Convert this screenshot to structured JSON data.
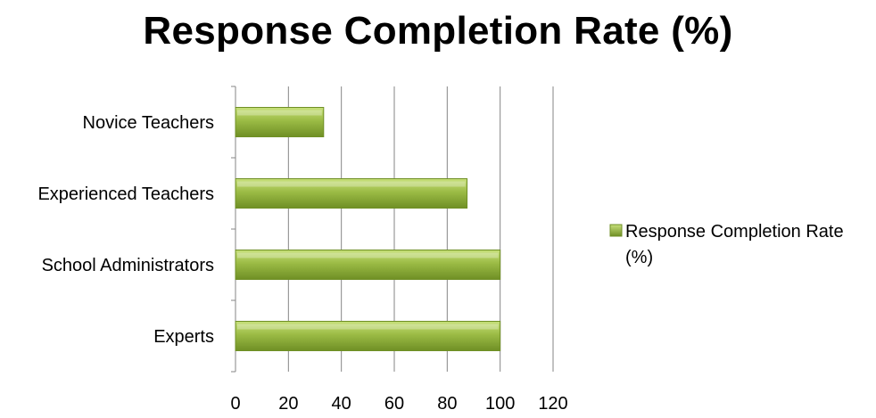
{
  "chart_data": {
    "type": "bar",
    "orientation": "horizontal",
    "title": "Response Completion Rate (%)",
    "categories": [
      "Experts",
      "School Administrators",
      "Experienced Teachers",
      "Novice Teachers"
    ],
    "series": [
      {
        "name": "Response Completion Rate (%)",
        "values": [
          100,
          100,
          87.5,
          33.3
        ]
      }
    ],
    "xlim": [
      0,
      120
    ],
    "xticks": [
      "0",
      "20",
      "40",
      "60",
      "80",
      "100",
      "120"
    ],
    "grid": true,
    "legend": {
      "position": "right",
      "lines": [
        "Response Completion Rate",
        "(%)"
      ]
    },
    "colors": {
      "bar_light": "#c7e07a",
      "bar_mid": "#9bbb45",
      "bar_dark": "#6f8f25",
      "grid": "#868686"
    }
  }
}
